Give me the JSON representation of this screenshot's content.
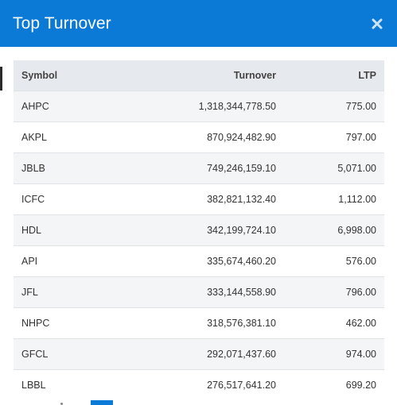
{
  "modal": {
    "title": "Top Turnover",
    "accent_color": "#0b7ad6",
    "close_icon": "close-icon"
  },
  "table": {
    "columns": [
      "Symbol",
      "Turnover",
      "LTP"
    ],
    "rows": [
      {
        "symbol": "AHPC",
        "turnover": "1,318,344,778.50",
        "ltp": "775.00"
      },
      {
        "symbol": "AKPL",
        "turnover": "870,924,482.90",
        "ltp": "797.00"
      },
      {
        "symbol": "JBLB",
        "turnover": "749,246,159.10",
        "ltp": "5,071.00"
      },
      {
        "symbol": "ICFC",
        "turnover": "382,821,132.40",
        "ltp": "1,112.00"
      },
      {
        "symbol": "HDL",
        "turnover": "342,199,724.10",
        "ltp": "6,998.00"
      },
      {
        "symbol": "API",
        "turnover": "335,674,460.20",
        "ltp": "576.00"
      },
      {
        "symbol": "JFL",
        "turnover": "333,144,558.90",
        "ltp": "796.00"
      },
      {
        "symbol": "NHPC",
        "turnover": "318,576,381.10",
        "ltp": "462.00"
      },
      {
        "symbol": "GFCL",
        "turnover": "292,071,437.60",
        "ltp": "974.00"
      },
      {
        "symbol": "LBBL",
        "turnover": "276,517,641.20",
        "ltp": "699.20"
      }
    ]
  }
}
